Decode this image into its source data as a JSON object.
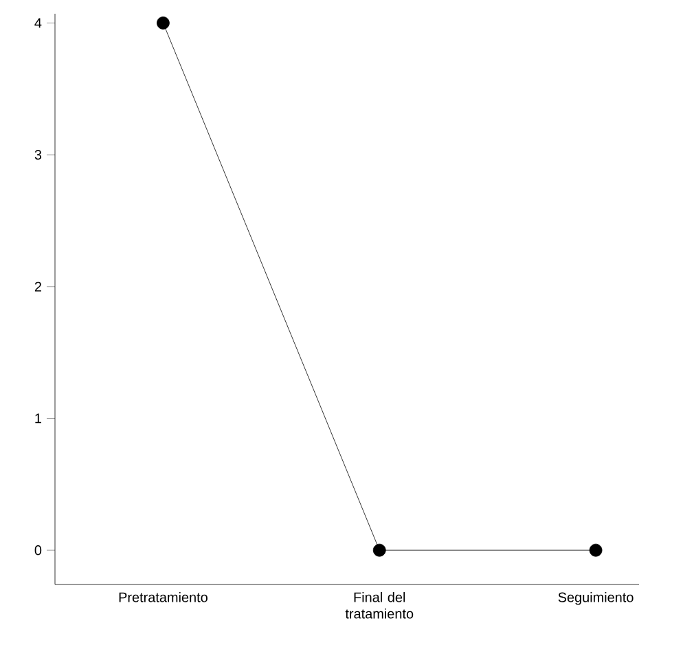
{
  "chart_data": {
    "type": "line",
    "categories": [
      "Pretratamiento",
      "Final del tratamiento",
      "Seguimiento"
    ],
    "values": [
      4,
      0,
      0
    ],
    "color": "#000000",
    "ylim": [
      -0.26,
      4.07
    ],
    "yticks": [
      0,
      1,
      2,
      3,
      4
    ],
    "marker": "circle",
    "line_style": "solid"
  }
}
